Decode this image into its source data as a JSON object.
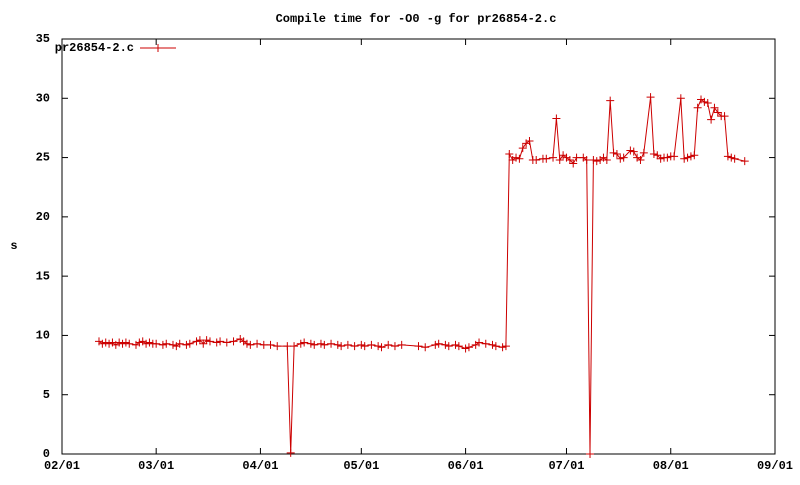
{
  "chart_data": {
    "type": "line",
    "title": "Compile time for -O0 -g for pr26854-2.c",
    "ylabel": "s",
    "legend": "top-left",
    "grid": false,
    "xlim": [
      "02/01",
      "09/01"
    ],
    "xticks": [
      "02/01",
      "03/01",
      "04/01",
      "05/01",
      "06/01",
      "07/01",
      "08/01",
      "09/01"
    ],
    "ylim": [
      0,
      35
    ],
    "yticks": [
      0,
      5,
      10,
      15,
      20,
      25,
      30,
      35
    ],
    "x": [
      "02/12",
      "02/13",
      "02/14",
      "02/15",
      "02/16",
      "02/17",
      "02/18",
      "02/19",
      "02/20",
      "02/21",
      "02/23",
      "02/24",
      "02/25",
      "02/26",
      "02/27",
      "02/28",
      "03/01",
      "03/03",
      "03/04",
      "03/06",
      "03/07",
      "03/08",
      "03/10",
      "03/11",
      "03/13",
      "03/14",
      "03/15",
      "03/16",
      "03/17",
      "03/19",
      "03/20",
      "03/22",
      "03/24",
      "03/26",
      "03/27",
      "03/28",
      "03/29",
      "03/31",
      "04/02",
      "04/04",
      "04/06",
      "04/09",
      "04/10",
      "04/11",
      "04/13",
      "04/14",
      "04/16",
      "04/17",
      "04/19",
      "04/20",
      "04/22",
      "04/24",
      "04/25",
      "04/27",
      "04/29",
      "05/01",
      "05/02",
      "05/04",
      "05/06",
      "05/07",
      "05/09",
      "05/11",
      "05/13",
      "05/18",
      "05/20",
      "05/23",
      "05/24",
      "05/26",
      "05/27",
      "05/29",
      "05/30",
      "06/01",
      "06/02",
      "06/04",
      "06/05",
      "06/07",
      "06/09",
      "06/10",
      "06/12",
      "06/13",
      "06/14",
      "06/15",
      "06/16",
      "06/17",
      "06/18",
      "06/19",
      "06/20",
      "06/21",
      "06/22",
      "06/24",
      "06/25",
      "06/27",
      "06/28",
      "06/29",
      "06/30",
      "07/01",
      "07/02",
      "07/03",
      "07/04",
      "07/06",
      "07/07",
      "07/08",
      "07/09",
      "07/10",
      "07/11",
      "07/12",
      "07/13",
      "07/14",
      "07/15",
      "07/16",
      "07/17",
      "07/18",
      "07/20",
      "07/21",
      "07/22",
      "07/23",
      "07/24",
      "07/26",
      "07/27",
      "07/28",
      "07/29",
      "07/30",
      "07/31",
      "08/01",
      "08/02",
      "08/04",
      "08/05",
      "08/06",
      "08/07",
      "08/08",
      "08/09",
      "08/10",
      "08/11",
      "08/12",
      "08/13",
      "08/14",
      "08/15",
      "08/16",
      "08/17",
      "08/18",
      "08/19",
      "08/20",
      "08/23"
    ],
    "series": [
      {
        "name": "pr26854-2.c",
        "color": "#cc0000",
        "values": [
          9.5,
          9.3,
          9.4,
          9.3,
          9.4,
          9.2,
          9.4,
          9.3,
          9.4,
          9.3,
          9.2,
          9.4,
          9.5,
          9.3,
          9.4,
          9.3,
          9.3,
          9.2,
          9.3,
          9.2,
          9.1,
          9.3,
          9.2,
          9.3,
          9.5,
          9.6,
          9.3,
          9.6,
          9.5,
          9.4,
          9.5,
          9.4,
          9.5,
          9.7,
          9.5,
          9.3,
          9.2,
          9.3,
          9.2,
          9.2,
          9.1,
          9.1,
          0.1,
          9.1,
          9.3,
          9.4,
          9.3,
          9.2,
          9.3,
          9.2,
          9.3,
          9.2,
          9.1,
          9.2,
          9.1,
          9.2,
          9.1,
          9.2,
          9.1,
          9.0,
          9.2,
          9.1,
          9.2,
          9.1,
          9.0,
          9.2,
          9.3,
          9.2,
          9.1,
          9.2,
          9.1,
          8.9,
          9.0,
          9.2,
          9.4,
          9.3,
          9.2,
          9.1,
          9.0,
          9.1,
          25.3,
          24.8,
          25.0,
          24.9,
          25.8,
          26.2,
          26.4,
          24.8,
          24.8,
          24.9,
          24.9,
          25.0,
          28.3,
          24.8,
          25.2,
          25.0,
          24.8,
          24.5,
          25.0,
          25.0,
          24.8,
          0.0,
          24.8,
          24.7,
          24.8,
          25.0,
          24.8,
          29.8,
          25.4,
          25.3,
          24.9,
          25.0,
          25.6,
          25.5,
          25.0,
          24.8,
          25.4,
          30.1,
          25.3,
          25.2,
          24.9,
          25.0,
          25.0,
          25.1,
          25.1,
          30.0,
          24.9,
          25.0,
          25.1,
          25.2,
          29.2,
          29.9,
          29.7,
          29.6,
          28.2,
          29.2,
          28.8,
          28.5,
          28.5,
          25.1,
          25.0,
          24.9,
          24.7
        ]
      }
    ]
  }
}
